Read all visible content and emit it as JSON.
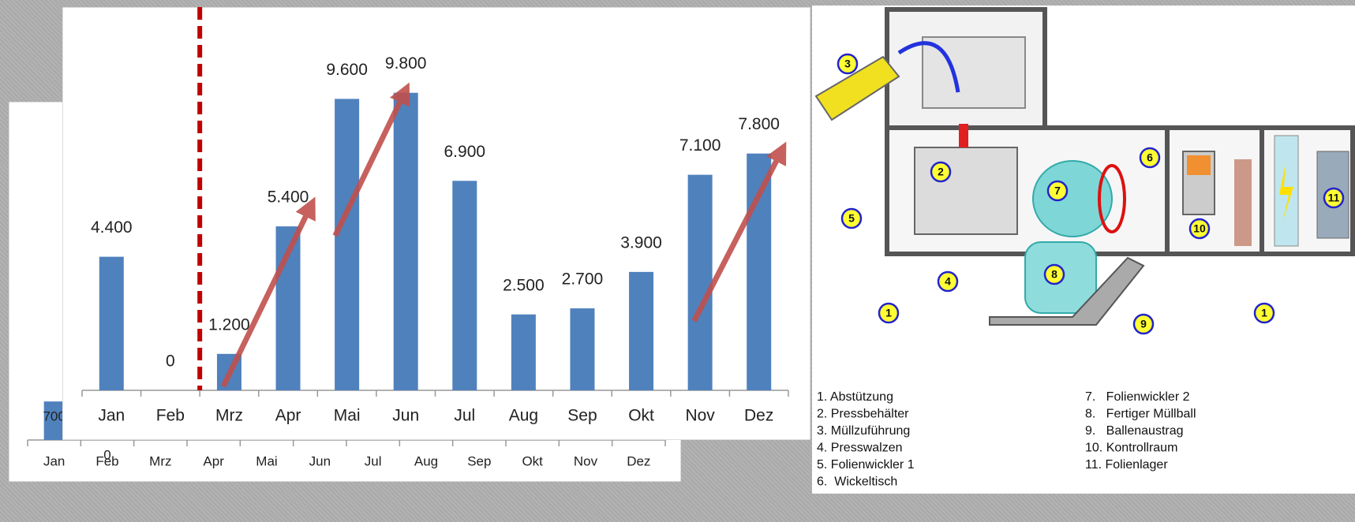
{
  "chart_data": [
    {
      "type": "bar",
      "categories": [
        "Jan",
        "Feb",
        "Mrz",
        "Apr",
        "Mai",
        "Jun",
        "Jul",
        "Aug",
        "Sep",
        "Okt",
        "Nov",
        "Dez"
      ],
      "values": [
        4400,
        0,
        1200,
        5400,
        9600,
        9800,
        6900,
        2500,
        2700,
        3900,
        7100,
        7800
      ],
      "value_labels": [
        "4.400",
        "0",
        "1.200",
        "5.400",
        "9.600",
        "9.800",
        "6.900",
        "2.500",
        "2.700",
        "3.900",
        "7.100",
        "7.800"
      ],
      "color": "#4f81bd",
      "ylim": [
        0,
        10000
      ]
    },
    {
      "type": "bar",
      "categories": [
        "Jan",
        "Feb",
        "Mrz",
        "Apr",
        "Mai",
        "Jun",
        "Jul",
        "Aug",
        "Sep",
        "Okt",
        "Nov",
        "Dez"
      ],
      "values": [
        700,
        0,
        null,
        null,
        null,
        null,
        null,
        null,
        null,
        null,
        null,
        null
      ],
      "value_labels": [
        "700",
        "0",
        null,
        null,
        null,
        null,
        null,
        null,
        null,
        null,
        null,
        null
      ],
      "color": "#4f81bd",
      "ylim": [
        0,
        5000
      ]
    }
  ],
  "diagram": {
    "callouts": [
      "3",
      "2",
      "5",
      "7",
      "6",
      "10",
      "11",
      "4",
      "8",
      "9",
      "1",
      "1"
    ],
    "legend": [
      "1. Abstützung",
      "2. Pressbehälter",
      "3. Müllzuführung",
      "4. Presswalzen",
      "5. Folienwickler 1",
      "6.  Wickeltisch",
      "7.   Folienwickler 2",
      "8.   Fertiger Müllball",
      "9.   Ballenaustrag",
      "10. Kontrollraum",
      "11. Folienlager"
    ]
  }
}
